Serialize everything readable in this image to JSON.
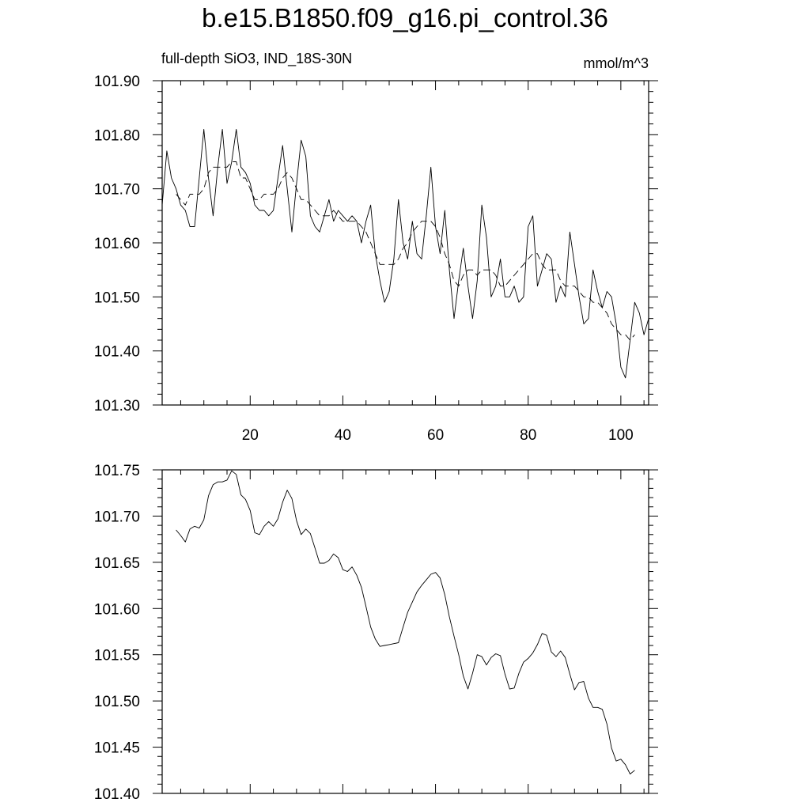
{
  "title": "b.e15.B1850.f09_g16.pi_control.36",
  "subtitle_left": "full-depth SiO3, IND_18S-30N",
  "subtitle_right": "mmol/m^3",
  "colors": {
    "line": "#000000",
    "axis": "#000000",
    "background": "#ffffff"
  },
  "chart_data": [
    {
      "type": "line",
      "xlim": [
        1,
        106
      ],
      "ylim": [
        101.3,
        101.9
      ],
      "x_ticks": [
        20,
        40,
        60,
        80,
        100
      ],
      "y_ticks": [
        "101.30",
        "101.40",
        "101.50",
        "101.60",
        "101.70",
        "101.80",
        "101.90"
      ],
      "grid": false,
      "series": [
        {
          "style": "solid",
          "x": [
            1,
            2,
            3,
            4,
            5,
            6,
            7,
            8,
            9,
            10,
            11,
            12,
            13,
            14,
            15,
            16,
            17,
            18,
            19,
            20,
            21,
            22,
            23,
            24,
            25,
            26,
            27,
            28,
            29,
            30,
            31,
            32,
            33,
            34,
            35,
            36,
            37,
            38,
            39,
            40,
            41,
            42,
            43,
            44,
            45,
            46,
            47,
            48,
            49,
            50,
            51,
            52,
            53,
            54,
            55,
            56,
            57,
            58,
            59,
            60,
            61,
            62,
            63,
            64,
            65,
            66,
            67,
            68,
            69,
            70,
            71,
            72,
            73,
            74,
            75,
            76,
            77,
            78,
            79,
            80,
            81,
            82,
            83,
            84,
            85,
            86,
            87,
            88,
            89,
            90,
            91,
            92,
            93,
            94,
            95,
            96,
            97,
            98,
            99,
            100,
            101,
            102,
            103,
            104,
            105,
            106
          ],
          "values": [
            101.67,
            101.77,
            101.72,
            101.7,
            101.67,
            101.66,
            101.63,
            101.63,
            101.72,
            101.81,
            101.72,
            101.65,
            101.74,
            101.81,
            101.71,
            101.75,
            101.81,
            101.74,
            101.73,
            101.71,
            101.67,
            101.66,
            101.66,
            101.65,
            101.66,
            101.72,
            101.78,
            101.7,
            101.62,
            101.71,
            101.79,
            101.76,
            101.65,
            101.63,
            101.62,
            101.65,
            101.68,
            101.64,
            101.66,
            101.65,
            101.64,
            101.65,
            101.64,
            101.6,
            101.64,
            101.67,
            101.58,
            101.53,
            101.49,
            101.51,
            101.57,
            101.68,
            101.6,
            101.57,
            101.64,
            101.58,
            101.57,
            101.65,
            101.74,
            101.63,
            101.58,
            101.66,
            101.55,
            101.46,
            101.53,
            101.59,
            101.52,
            101.46,
            101.53,
            101.67,
            101.61,
            101.5,
            101.52,
            101.57,
            101.5,
            101.5,
            101.52,
            101.49,
            101.5,
            101.63,
            101.65,
            101.52,
            101.55,
            101.58,
            101.57,
            101.49,
            101.52,
            101.5,
            101.62,
            101.56,
            101.5,
            101.45,
            101.46,
            101.55,
            101.51,
            101.48,
            101.51,
            101.5,
            101.45,
            101.37,
            101.35,
            101.42,
            101.49,
            101.47,
            101.43,
            101.46
          ]
        },
        {
          "style": "dashed",
          "x": [
            4,
            5,
            6,
            7,
            8,
            9,
            10,
            11,
            12,
            13,
            14,
            15,
            16,
            17,
            18,
            19,
            20,
            21,
            22,
            23,
            24,
            25,
            26,
            27,
            28,
            29,
            30,
            31,
            32,
            33,
            34,
            35,
            36,
            37,
            38,
            39,
            40,
            41,
            42,
            43,
            44,
            45,
            46,
            47,
            48,
            49,
            50,
            51,
            52,
            53,
            54,
            55,
            56,
            57,
            58,
            59,
            60,
            61,
            62,
            63,
            64,
            65,
            66,
            67,
            68,
            69,
            70,
            71,
            72,
            73,
            74,
            75,
            76,
            77,
            78,
            79,
            80,
            81,
            82,
            83,
            84,
            85,
            86,
            87,
            88,
            89,
            90,
            91,
            92,
            93,
            94,
            95,
            96,
            97,
            98,
            99,
            100,
            101,
            102,
            103
          ],
          "values": [
            101.69,
            101.68,
            101.67,
            101.69,
            101.69,
            101.69,
            101.7,
            101.73,
            101.74,
            101.74,
            101.74,
            101.74,
            101.75,
            101.75,
            101.72,
            101.72,
            101.7,
            101.68,
            101.68,
            101.69,
            101.69,
            101.69,
            101.7,
            101.72,
            101.73,
            101.72,
            101.7,
            101.68,
            101.68,
            101.67,
            101.66,
            101.65,
            101.65,
            101.65,
            101.66,
            101.65,
            101.64,
            101.64,
            101.64,
            101.64,
            101.63,
            101.62,
            101.6,
            101.58,
            101.56,
            101.56,
            101.56,
            101.56,
            101.57,
            101.59,
            101.6,
            101.62,
            101.63,
            101.64,
            101.64,
            101.64,
            101.63,
            101.61,
            101.58,
            101.56,
            101.53,
            101.52,
            101.54,
            101.55,
            101.55,
            101.54,
            101.55,
            101.55,
            101.55,
            101.54,
            101.52,
            101.52,
            101.53,
            101.54,
            101.55,
            101.56,
            101.57,
            101.58,
            101.58,
            101.56,
            101.55,
            101.55,
            101.55,
            101.53,
            101.52,
            101.52,
            101.52,
            101.51,
            101.5,
            101.5,
            101.49,
            101.49,
            101.48,
            101.47,
            101.45,
            101.44,
            101.43,
            101.43,
            101.42,
            101.43
          ]
        }
      ]
    },
    {
      "type": "line",
      "xlim": [
        1,
        106
      ],
      "ylim": [
        101.4,
        101.75
      ],
      "x_ticks": [
        20,
        40,
        60,
        80,
        100
      ],
      "y_ticks": [
        "101.40",
        "101.45",
        "101.50",
        "101.55",
        "101.60",
        "101.65",
        "101.70",
        "101.75"
      ],
      "grid": false,
      "series": [
        {
          "style": "solid",
          "x": [
            4,
            5,
            6,
            7,
            8,
            9,
            10,
            11,
            12,
            13,
            14,
            15,
            16,
            17,
            18,
            19,
            20,
            21,
            22,
            23,
            24,
            25,
            26,
            27,
            28,
            29,
            30,
            31,
            32,
            33,
            34,
            35,
            36,
            37,
            38,
            39,
            40,
            41,
            42,
            43,
            44,
            45,
            46,
            47,
            48,
            49,
            50,
            51,
            52,
            53,
            54,
            55,
            56,
            57,
            58,
            59,
            60,
            61,
            62,
            63,
            64,
            65,
            66,
            67,
            68,
            69,
            70,
            71,
            72,
            73,
            74,
            75,
            76,
            77,
            78,
            79,
            80,
            81,
            82,
            83,
            84,
            85,
            86,
            87,
            88,
            89,
            90,
            91,
            92,
            93,
            94,
            95,
            96,
            97,
            98,
            99,
            100,
            101,
            102,
            103
          ],
          "values": [
            101.685,
            101.679,
            101.672,
            101.686,
            101.689,
            101.687,
            101.696,
            101.722,
            101.734,
            101.737,
            101.737,
            101.739,
            101.749,
            101.745,
            101.723,
            101.718,
            101.706,
            101.682,
            101.68,
            101.689,
            101.694,
            101.689,
            101.697,
            101.715,
            101.728,
            101.719,
            101.695,
            101.68,
            101.686,
            101.681,
            101.665,
            101.649,
            101.649,
            101.652,
            101.659,
            101.655,
            101.642,
            101.64,
            101.645,
            101.636,
            101.623,
            101.602,
            101.58,
            101.567,
            101.559,
            101.56,
            101.561,
            101.562,
            101.563,
            101.58,
            101.596,
            101.607,
            101.618,
            101.625,
            101.631,
            101.637,
            101.639,
            101.633,
            101.615,
            101.591,
            101.57,
            101.55,
            101.527,
            101.513,
            101.53,
            101.55,
            101.548,
            101.539,
            101.547,
            101.551,
            101.549,
            101.529,
            101.513,
            101.514,
            101.53,
            101.542,
            101.546,
            101.552,
            101.561,
            101.573,
            101.571,
            101.553,
            101.548,
            101.554,
            101.547,
            101.529,
            101.512,
            101.52,
            101.521,
            101.503,
            101.493,
            101.493,
            101.491,
            101.475,
            101.449,
            101.435,
            101.437,
            101.431,
            101.421,
            101.425
          ]
        }
      ]
    }
  ]
}
